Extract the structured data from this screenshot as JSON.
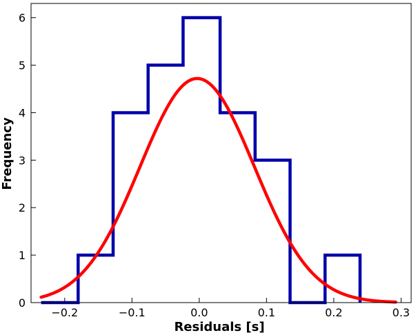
{
  "chart_data": {
    "type": "histogram",
    "xlabel": "Residuals [s]",
    "ylabel": "Frequency",
    "xlim": [
      -0.25,
      0.315
    ],
    "ylim": [
      0,
      6.3
    ],
    "xticks": [
      -0.2,
      -0.1,
      0.0,
      0.1,
      0.2,
      0.3
    ],
    "xtick_labels": [
      "−0.2",
      "−0.1",
      "0.0",
      "0.1",
      "0.2",
      "0.3"
    ],
    "yticks": [
      0,
      1,
      2,
      3,
      4,
      5,
      6
    ],
    "ytick_labels": [
      "0",
      "1",
      "2",
      "3",
      "4",
      "5",
      "6"
    ],
    "grid": false,
    "legend": "none",
    "histogram": {
      "color": "#0000aa",
      "bin_edges": [
        -0.235,
        -0.18,
        -0.128,
        -0.076,
        -0.024,
        0.031,
        0.083,
        0.135,
        0.187,
        0.239
      ],
      "counts": [
        0,
        1,
        4,
        5,
        6,
        4,
        3,
        0,
        1
      ]
    },
    "fit_curve": {
      "color": "#ff0000",
      "x_range": [
        -0.235,
        0.292
      ],
      "amplitude": 4.72,
      "mean": -0.003,
      "sigma": 0.085
    }
  }
}
